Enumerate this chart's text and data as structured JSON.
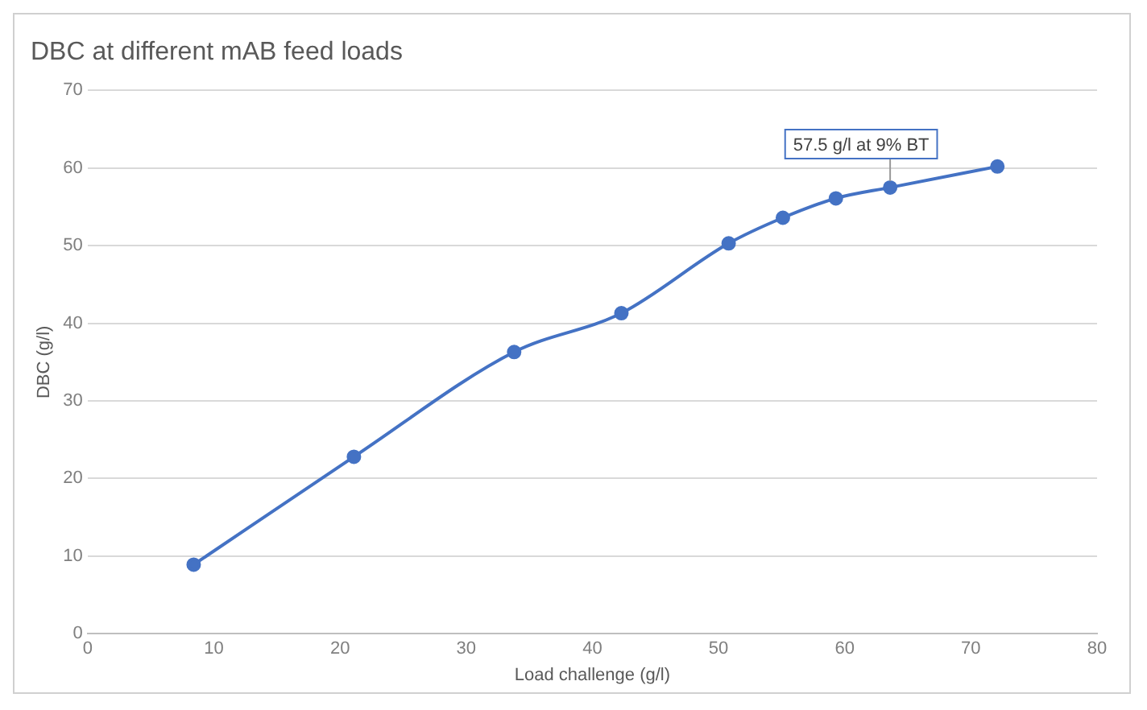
{
  "chart_data": {
    "type": "line",
    "title": "DBC at different mAB feed loads",
    "xlabel": "Load challenge (g/l)",
    "ylabel": "DBC (g/l)",
    "x": [
      8.4,
      21.1,
      33.8,
      42.3,
      50.8,
      55.1,
      59.3,
      63.6,
      72.1
    ],
    "series": [
      {
        "color": "#4472c4",
        "values": [
          8.9,
          22.8,
          36.3,
          41.3,
          50.3,
          53.6,
          56.1,
          57.5,
          60.2
        ]
      }
    ],
    "xlim": [
      0,
      80
    ],
    "xticks": [
      0,
      10,
      20,
      30,
      40,
      50,
      60,
      70,
      80
    ],
    "ylim": [
      0,
      70
    ],
    "yticks": [
      0,
      10,
      20,
      30,
      40,
      50,
      60,
      70
    ],
    "grid": "y",
    "legend": false,
    "marker": "circle",
    "line_style": "solid",
    "annotations": [
      {
        "text": "57.5 g/l at 9% BT",
        "x": 63.6,
        "y": 57.5
      }
    ]
  }
}
